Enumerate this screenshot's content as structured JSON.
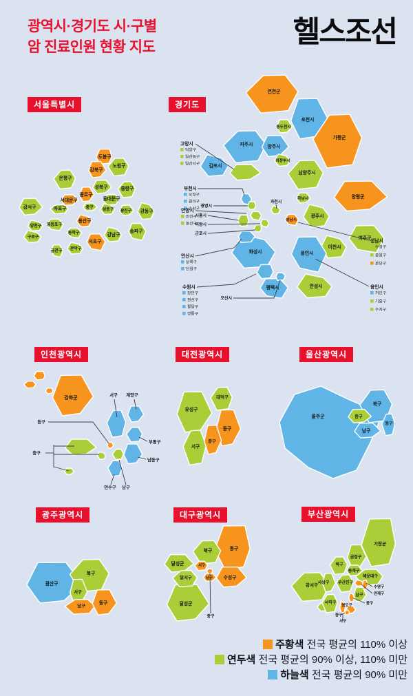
{
  "palette": {
    "page_bg": "#dce3f0",
    "title_red": "#e8112d",
    "badge_red": "#e8112d",
    "badge_text": "#ffffff",
    "logo_black": "#0b0b0e",
    "above_color": "#f7941e",
    "mid_color": "#a9ce38",
    "below_color": "#60b4e6",
    "label_color": "#17171c",
    "leader_color": "#3c3c46",
    "legend_text": "#13131f"
  },
  "header": {
    "title_line1": "광역시·경기도 시·구별",
    "title_line2": "암 진료인원 현황 지도",
    "logo": "헬스조선"
  },
  "legend": {
    "items": [
      {
        "color_name": "주황색",
        "desc": "전국 평균의 110% 이상",
        "level": "above"
      },
      {
        "color_name": "연두색",
        "desc": "전국 평균의 90% 이상, 110% 미만",
        "level": "mid"
      },
      {
        "color_name": "하늘색",
        "desc": "전국 평균의 90% 미만",
        "level": "below"
      }
    ]
  },
  "maps": {
    "seoul": {
      "badge": "서울특별시",
      "regions": [
        {
          "name": "도봉구",
          "level": "above"
        },
        {
          "name": "노원구",
          "level": "mid"
        },
        {
          "name": "강북구",
          "level": "above"
        },
        {
          "name": "은평구",
          "level": "mid"
        },
        {
          "name": "성북구",
          "level": "mid"
        },
        {
          "name": "중랑구",
          "level": "mid"
        },
        {
          "name": "종로구",
          "level": "above"
        },
        {
          "name": "동대문구",
          "level": "mid"
        },
        {
          "name": "서대문구",
          "level": "above"
        },
        {
          "name": "마포구",
          "level": "mid"
        },
        {
          "name": "중구",
          "level": "mid"
        },
        {
          "name": "성동구",
          "level": "mid"
        },
        {
          "name": "광진구",
          "level": "mid"
        },
        {
          "name": "강동구",
          "level": "mid"
        },
        {
          "name": "강서구",
          "level": "mid"
        },
        {
          "name": "양천구",
          "level": "mid"
        },
        {
          "name": "영등포구",
          "level": "mid"
        },
        {
          "name": "용산구",
          "level": "above"
        },
        {
          "name": "송파구",
          "level": "mid"
        },
        {
          "name": "구로구",
          "level": "mid"
        },
        {
          "name": "동작구",
          "level": "mid"
        },
        {
          "name": "강남구",
          "level": "mid"
        },
        {
          "name": "서초구",
          "level": "above"
        },
        {
          "name": "관악구",
          "level": "mid"
        },
        {
          "name": "금천구",
          "level": "mid"
        }
      ]
    },
    "gyeonggi": {
      "badge": "경기도",
      "regions": [
        {
          "name": "연천군",
          "level": "above"
        },
        {
          "name": "포천시",
          "level": "below"
        },
        {
          "name": "가평군",
          "level": "above"
        },
        {
          "name": "동두천시",
          "level": "mid"
        },
        {
          "name": "파주시",
          "level": "below"
        },
        {
          "name": "양주시",
          "level": "below"
        },
        {
          "name": "남양주시",
          "level": "mid"
        },
        {
          "name": "양평군",
          "level": "above"
        },
        {
          "name": "김포시",
          "level": "below"
        },
        {
          "name": "고양시",
          "level": "mid"
        },
        {
          "name": "의정부시",
          "level": "mid"
        },
        {
          "name": "하남시",
          "level": "mid"
        },
        {
          "name": "광주시",
          "level": "mid"
        },
        {
          "name": "여주군",
          "level": "mid"
        },
        {
          "name": "이천시",
          "level": "mid"
        },
        {
          "name": "용인시",
          "level": "below"
        },
        {
          "name": "안성시",
          "level": "mid"
        },
        {
          "name": "평택시",
          "level": "below"
        },
        {
          "name": "화성시",
          "level": "below"
        },
        {
          "name": "성남시",
          "level": "above"
        },
        {
          "name": "과천시",
          "level": "mid"
        },
        {
          "name": "부천시",
          "level": "below"
        },
        {
          "name": "광명시",
          "level": "mid"
        },
        {
          "name": "안양시",
          "level": "mid"
        },
        {
          "name": "시흥시",
          "level": "mid"
        },
        {
          "name": "의왕시",
          "level": "mid"
        },
        {
          "name": "군포시",
          "level": "mid"
        },
        {
          "name": "안산시",
          "level": "below"
        },
        {
          "name": "수원시",
          "level": "below"
        },
        {
          "name": "오산시",
          "level": "below"
        }
      ],
      "district_callouts": [
        {
          "city": "고양시",
          "districts": [
            {
              "name": "덕양구",
              "level": "mid"
            },
            {
              "name": "일산동구",
              "level": "mid"
            },
            {
              "name": "일산서구",
              "level": "mid"
            }
          ]
        },
        {
          "city": "부천시",
          "districts": [
            {
              "name": "오정구",
              "level": "below"
            },
            {
              "name": "원미구",
              "level": "below"
            },
            {
              "name": "소사구",
              "level": "below"
            }
          ]
        },
        {
          "city": "안양시",
          "districts": [
            {
              "name": "만안구",
              "level": "mid"
            },
            {
              "name": "동안구",
              "level": "mid"
            }
          ]
        },
        {
          "city": "안산시",
          "districts": [
            {
              "name": "상록구",
              "level": "below"
            },
            {
              "name": "단원구",
              "level": "below"
            }
          ]
        },
        {
          "city": "수원시",
          "districts": [
            {
              "name": "장안구",
              "level": "below"
            },
            {
              "name": "권선구",
              "level": "below"
            },
            {
              "name": "팔달구",
              "level": "below"
            },
            {
              "name": "영통구",
              "level": "below"
            }
          ]
        },
        {
          "city": "성남시",
          "districts": [
            {
              "name": "수정구",
              "level": "mid"
            },
            {
              "name": "중원구",
              "level": "mid"
            },
            {
              "name": "분당구",
              "level": "above"
            }
          ]
        },
        {
          "city": "용인시",
          "districts": [
            {
              "name": "처인구",
              "level": "below"
            },
            {
              "name": "기흥구",
              "level": "mid"
            },
            {
              "name": "수지구",
              "level": "mid"
            }
          ]
        }
      ]
    },
    "incheon": {
      "badge": "인천광역시",
      "regions": [
        {
          "name": "강화군",
          "level": "above"
        },
        {
          "name": "서구",
          "level": "below"
        },
        {
          "name": "계양구",
          "level": "below"
        },
        {
          "name": "부평구",
          "level": "below"
        },
        {
          "name": "남동구",
          "level": "below"
        },
        {
          "name": "연수구",
          "level": "below"
        },
        {
          "name": "중구",
          "level": "mid"
        },
        {
          "name": "남구",
          "level": "mid"
        },
        {
          "name": "동구",
          "level": "above"
        }
      ]
    },
    "daejeon": {
      "badge": "대전광역시",
      "regions": [
        {
          "name": "유성구",
          "level": "mid"
        },
        {
          "name": "대덕구",
          "level": "mid"
        },
        {
          "name": "동구",
          "level": "above"
        },
        {
          "name": "서구",
          "level": "mid"
        },
        {
          "name": "중구",
          "level": "above"
        }
      ]
    },
    "ulsan": {
      "badge": "울산광역시",
      "regions": [
        {
          "name": "울주군",
          "level": "below"
        },
        {
          "name": "북구",
          "level": "below"
        },
        {
          "name": "남구",
          "level": "below"
        },
        {
          "name": "동구",
          "level": "below"
        },
        {
          "name": "중구",
          "level": "mid"
        }
      ]
    },
    "gwangju": {
      "badge": "광주광역시",
      "regions": [
        {
          "name": "광산구",
          "level": "below"
        },
        {
          "name": "북구",
          "level": "mid"
        },
        {
          "name": "서구",
          "level": "mid"
        },
        {
          "name": "남구",
          "level": "above"
        },
        {
          "name": "동구",
          "level": "above"
        }
      ]
    },
    "daegu": {
      "badge": "대구광역시",
      "regions": [
        {
          "name": "동구",
          "level": "above"
        },
        {
          "name": "북구",
          "level": "mid"
        },
        {
          "name": "달성군",
          "level": "mid"
        },
        {
          "name": "달서구",
          "level": "mid"
        },
        {
          "name": "수성구",
          "level": "above"
        },
        {
          "name": "서구",
          "level": "above"
        },
        {
          "name": "남구",
          "level": "above"
        },
        {
          "name": "중구",
          "level": "above"
        }
      ]
    },
    "busan": {
      "badge": "부산광역시",
      "regions": [
        {
          "name": "기장군",
          "level": "mid"
        },
        {
          "name": "강서구",
          "level": "mid"
        },
        {
          "name": "금정구",
          "level": "mid"
        },
        {
          "name": "북구",
          "level": "mid"
        },
        {
          "name": "동래구",
          "level": "mid"
        },
        {
          "name": "해운대구",
          "level": "mid"
        },
        {
          "name": "사상구",
          "level": "mid"
        },
        {
          "name": "부산진구",
          "level": "mid"
        },
        {
          "name": "남구",
          "level": "mid"
        },
        {
          "name": "사하구",
          "level": "mid"
        },
        {
          "name": "수영구",
          "level": "above"
        },
        {
          "name": "연제구",
          "level": "above"
        },
        {
          "name": "영도구",
          "level": "above"
        },
        {
          "name": "동구",
          "level": "above"
        },
        {
          "name": "중구",
          "level": "above"
        },
        {
          "name": "서구",
          "level": "above"
        }
      ]
    }
  }
}
